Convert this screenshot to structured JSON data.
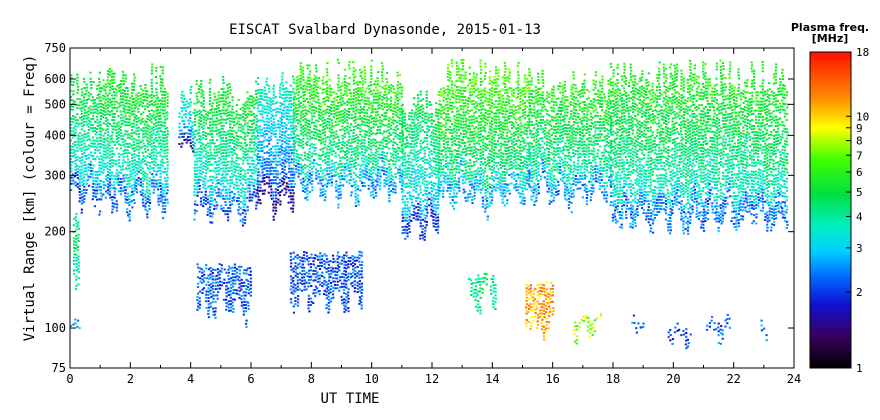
{
  "chart_data": {
    "type": "heatmap",
    "title": "EISCAT Svalbard Dynasonde, 2015-01-13",
    "xlabel": "UT TIME",
    "ylabel": "Virtual Range [km] (colour = Freq)",
    "colorbar_label_line1": "Plasma freq.",
    "colorbar_label_line2": "[MHz]",
    "x_ticks": [
      "0",
      "2",
      "4",
      "6",
      "8",
      "10",
      "12",
      "14",
      "16",
      "18",
      "20",
      "22",
      "24"
    ],
    "y_ticks": [
      "75",
      "100",
      "200",
      "300",
      "400",
      "500",
      "600",
      "750"
    ],
    "colorbar_ticks": [
      "1",
      "2",
      "3",
      "4",
      "5",
      "6",
      "7",
      "8",
      "9",
      "10",
      "18"
    ],
    "xlim": [
      0,
      24
    ],
    "ylim": [
      75,
      750
    ],
    "y_scale": "log",
    "colorbar_range": [
      1,
      18
    ],
    "colorbar_scale": "log",
    "grid": false,
    "f_region_echoes": [
      {
        "t_start": 0.0,
        "t_end": 1.0,
        "bottom_km": 255,
        "top_km": 640,
        "freq_MHz": 4.8
      },
      {
        "t_start": 1.0,
        "t_end": 3.2,
        "bottom_km": 245,
        "top_km": 680,
        "freq_MHz": 5.2
      },
      {
        "t_start": 3.6,
        "t_end": 4.1,
        "bottom_km": 370,
        "top_km": 600,
        "freq_MHz": 3.6
      },
      {
        "t_start": 4.1,
        "t_end": 6.2,
        "bottom_km": 230,
        "top_km": 620,
        "freq_MHz": 5.0
      },
      {
        "t_start": 6.2,
        "t_end": 7.4,
        "bottom_km": 240,
        "top_km": 650,
        "freq_MHz": 3.4
      },
      {
        "t_start": 7.4,
        "t_end": 11.0,
        "bottom_km": 265,
        "top_km": 700,
        "freq_MHz": 5.8
      },
      {
        "t_start": 11.0,
        "t_end": 12.2,
        "bottom_km": 205,
        "top_km": 560,
        "freq_MHz": 4.5
      },
      {
        "t_start": 12.2,
        "t_end": 15.2,
        "bottom_km": 250,
        "top_km": 700,
        "freq_MHz": 6.2
      },
      {
        "t_start": 15.2,
        "t_end": 17.9,
        "bottom_km": 260,
        "top_km": 660,
        "freq_MHz": 5.6
      },
      {
        "t_start": 17.9,
        "t_end": 23.8,
        "bottom_km": 215,
        "top_km": 690,
        "freq_MHz": 5.4
      }
    ],
    "e_region_echoes": [
      {
        "t_start": 0.0,
        "t_end": 0.35,
        "bottom_km": 98,
        "top_km": 108,
        "freq_MHz": 2.8
      },
      {
        "t_start": 0.1,
        "t_end": 0.3,
        "bottom_km": 140,
        "top_km": 230,
        "freq_MHz": 4.0
      },
      {
        "t_start": 4.2,
        "t_end": 6.0,
        "bottom_km": 115,
        "top_km": 160,
        "freq_MHz": 2.2
      },
      {
        "t_start": 7.3,
        "t_end": 9.7,
        "bottom_km": 120,
        "top_km": 175,
        "freq_MHz": 2.1
      },
      {
        "t_start": 13.2,
        "t_end": 14.1,
        "bottom_km": 125,
        "top_km": 150,
        "freq_MHz": 4.0
      },
      {
        "t_start": 15.1,
        "t_end": 16.0,
        "bottom_km": 100,
        "top_km": 140,
        "freq_MHz": 11.0
      },
      {
        "t_start": 16.7,
        "t_end": 17.6,
        "bottom_km": 97,
        "top_km": 110,
        "freq_MHz": 7.5
      },
      {
        "t_start": 18.6,
        "t_end": 19.0,
        "bottom_km": 100,
        "top_km": 106,
        "freq_MHz": 2.2
      },
      {
        "t_start": 19.8,
        "t_end": 20.6,
        "bottom_km": 95,
        "top_km": 100,
        "freq_MHz": 2.0
      },
      {
        "t_start": 21.1,
        "t_end": 21.9,
        "bottom_km": 97,
        "top_km": 105,
        "freq_MHz": 2.2
      },
      {
        "t_start": 22.9,
        "t_end": 23.1,
        "bottom_km": 100,
        "top_km": 104,
        "freq_MHz": 2.4
      }
    ]
  }
}
